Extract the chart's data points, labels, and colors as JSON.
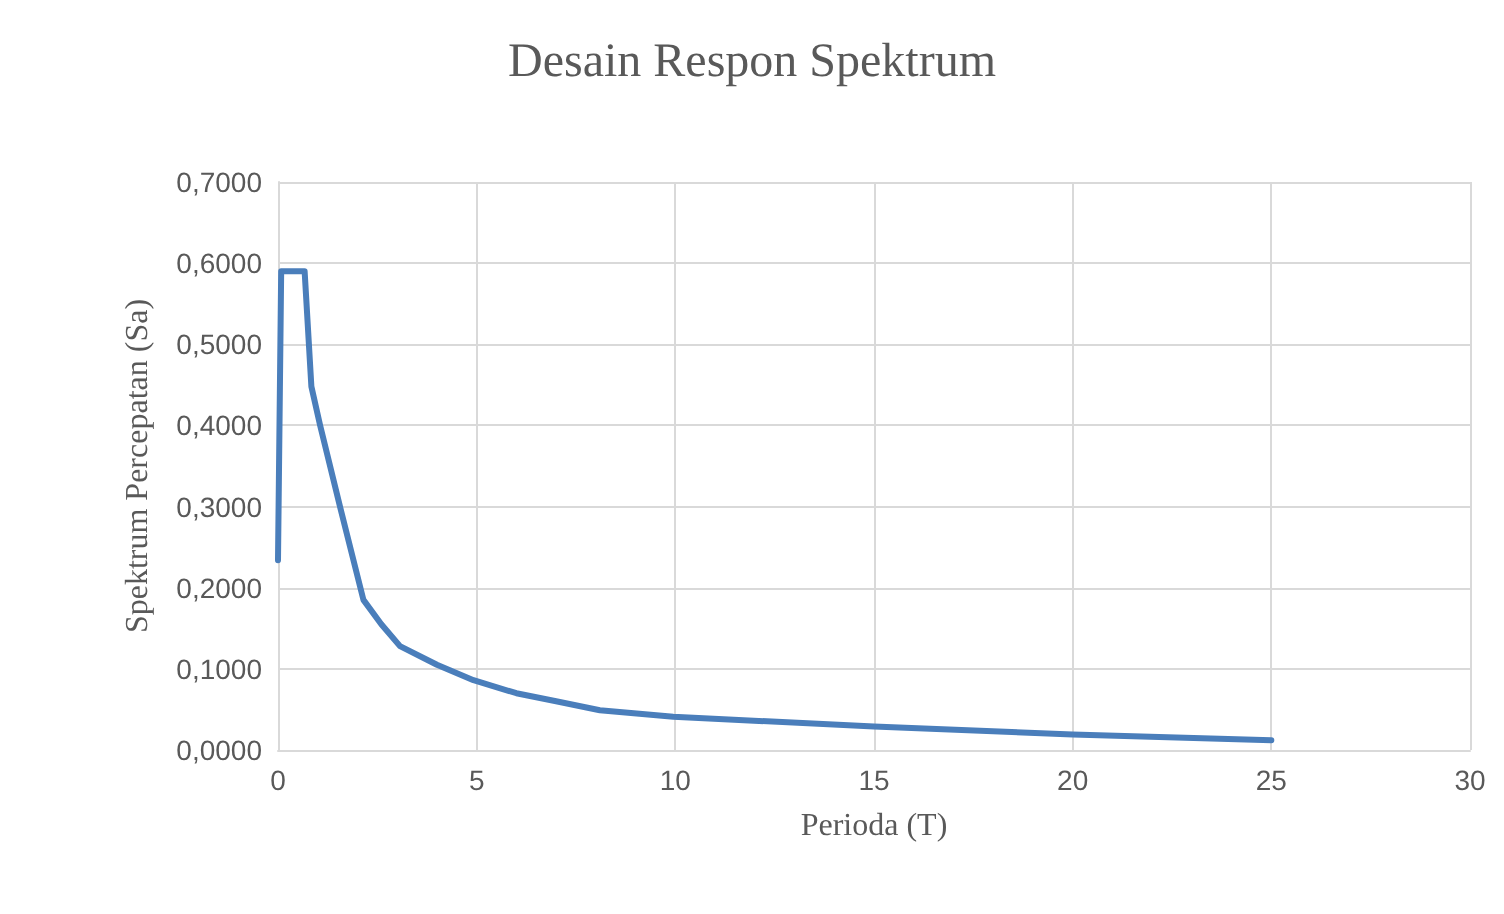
{
  "chart_data": {
    "type": "line",
    "title": "Desain Respon Spektrum",
    "xlabel": "Perioda (T)",
    "ylabel": "Spektrum Percepatan (Sa)",
    "x": [
      0,
      0.08,
      0.67,
      0.84,
      1.06,
      1.56,
      2.15,
      2.6,
      3.07,
      4,
      4.92,
      6,
      7,
      8.1,
      9.95,
      15,
      20,
      25
    ],
    "series": [
      {
        "color": "#4a7ebb",
        "values": [
          0.234,
          0.59,
          0.59,
          0.448,
          0.4,
          0.3,
          0.185,
          0.155,
          0.128,
          0.105,
          0.086,
          0.07,
          0.06,
          0.049,
          0.041,
          0.029,
          0.019,
          0.012
        ]
      }
    ],
    "xlim": [
      0,
      30
    ],
    "xticks": [
      0,
      5,
      10,
      15,
      20,
      25,
      30
    ],
    "ylim": [
      0,
      0.7
    ],
    "yticks": [
      {
        "value": 0,
        "label": "0,0000"
      },
      {
        "value": 0.1,
        "label": "0,1000"
      },
      {
        "value": 0.2,
        "label": "0,2000"
      },
      {
        "value": 0.3,
        "label": "0,3000"
      },
      {
        "value": 0.4,
        "label": "0,4000"
      },
      {
        "value": 0.5,
        "label": "0,5000"
      },
      {
        "value": 0.6,
        "label": "0,6000"
      },
      {
        "value": 0.7,
        "label": "0,7000"
      }
    ],
    "grid": true,
    "marker": "none",
    "line_style": "solid"
  }
}
